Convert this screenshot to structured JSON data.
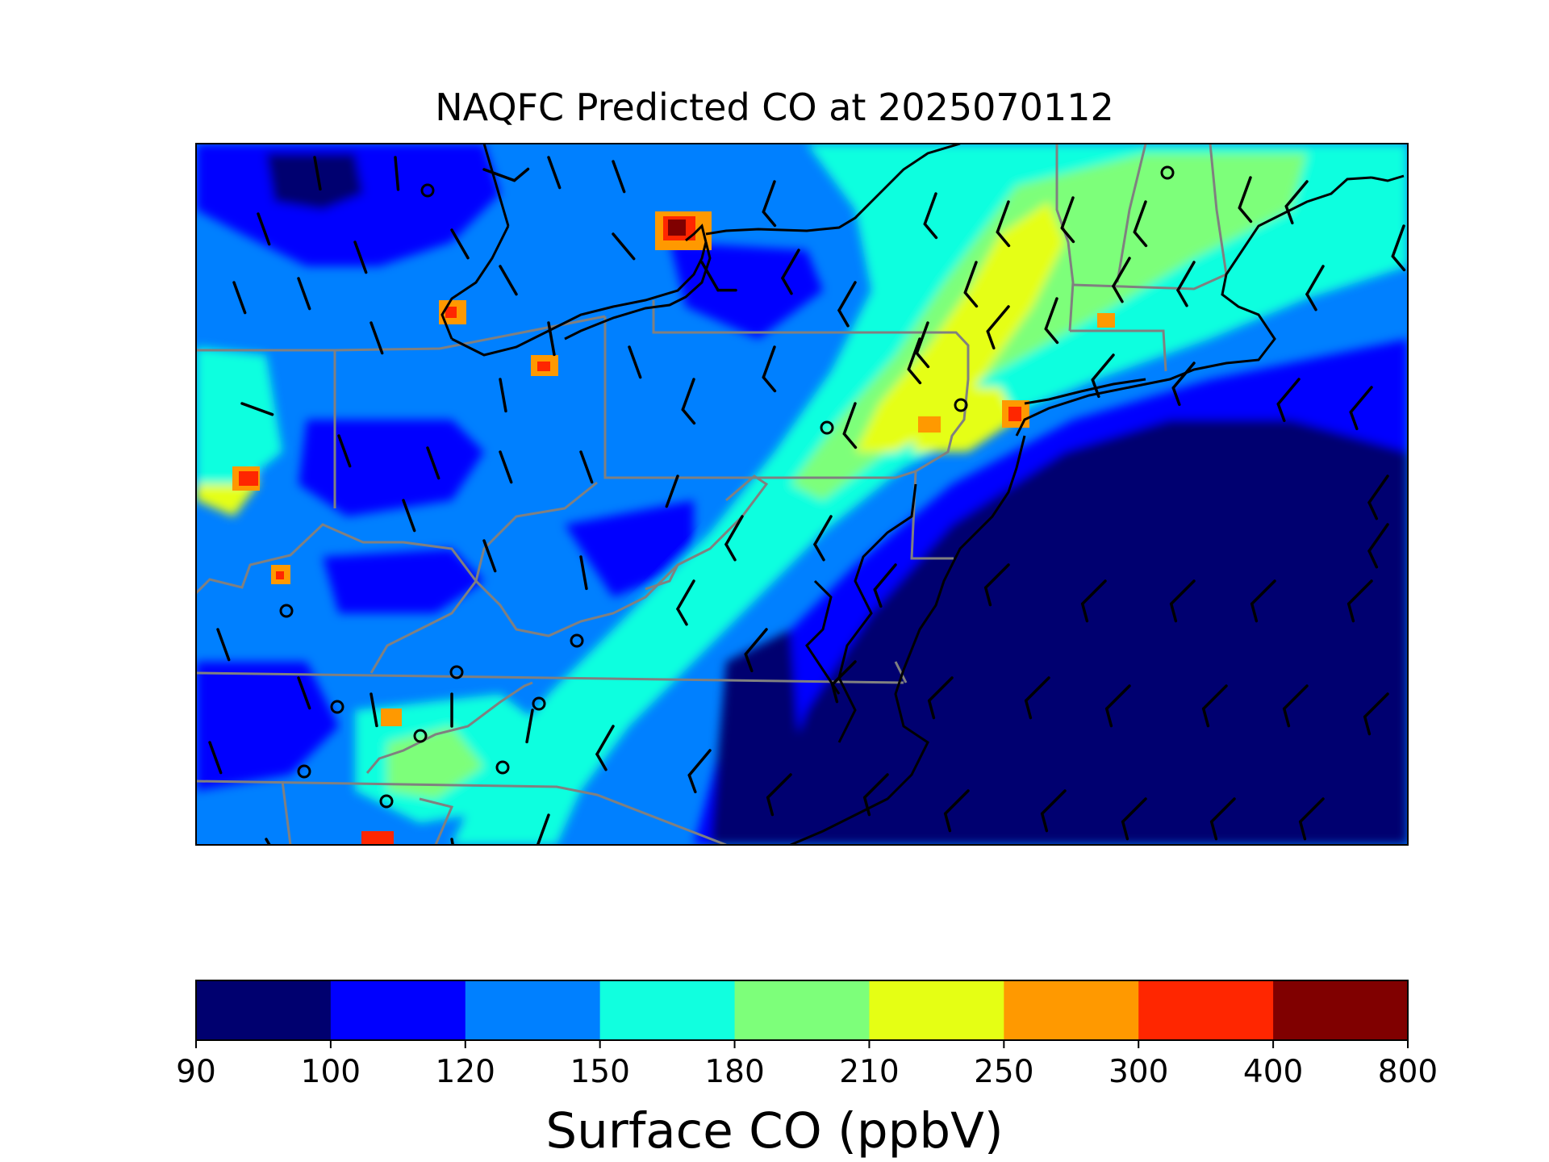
{
  "title": "NAQFC Predicted CO at 2025070112",
  "colorbar": {
    "label": "Surface CO (ppbV)",
    "boundaries": [
      90,
      100,
      120,
      150,
      180,
      210,
      250,
      300,
      400,
      800
    ],
    "colors": [
      "#00006f",
      "#0000ff",
      "#0080ff",
      "#11ffdf",
      "#7dff7a",
      "#e5ff14",
      "#ff9900",
      "#ff2600",
      "#800000"
    ]
  },
  "chart_data": {
    "type": "heatmap",
    "title": "NAQFC Predicted CO at 2025070112",
    "colorbar_label": "Surface CO (ppbV)",
    "levels": [
      90,
      100,
      120,
      150,
      180,
      210,
      250,
      300,
      400,
      800
    ],
    "overlays": [
      "state-borders",
      "coastlines",
      "wind-barbs",
      "station-markers"
    ]
  }
}
